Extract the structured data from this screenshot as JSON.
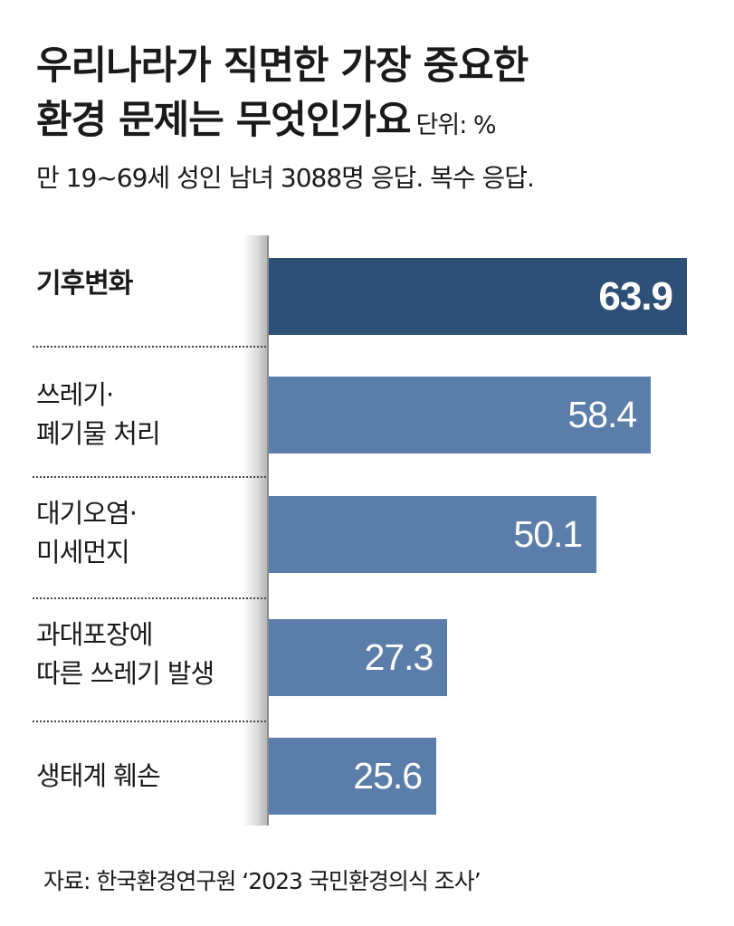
{
  "chart_data": {
    "type": "bar",
    "orientation": "horizontal",
    "title": [
      "우리나라가 직면한 가장 중요한",
      "환경 문제는 무엇인가요"
    ],
    "unit": "단위: %",
    "subtitle": "만 19~69세 성인 남녀 3088명 응답. 복수 응답.",
    "categories": [
      [
        "기후변화"
      ],
      [
        "쓰레기·",
        "폐기물 처리"
      ],
      [
        "대기오염·",
        "미세먼지"
      ],
      [
        "과대포장에",
        "따른 쓰레기 발생"
      ],
      [
        "생태계 훼손"
      ]
    ],
    "values": [
      63.9,
      58.4,
      50.1,
      27.3,
      25.6
    ],
    "value_labels": [
      "63.9",
      "58.4",
      "50.1",
      "27.3",
      "25.6"
    ],
    "xlim": [
      0,
      70
    ],
    "grid": false,
    "legend": "none",
    "source": "자료: 한국환경연구원 ‘2023 국민환경의식 조사’",
    "colors": {
      "highlight_bar": "#2e4f76",
      "bar": "#5b7daa",
      "value_text": "#ffffff"
    }
  }
}
